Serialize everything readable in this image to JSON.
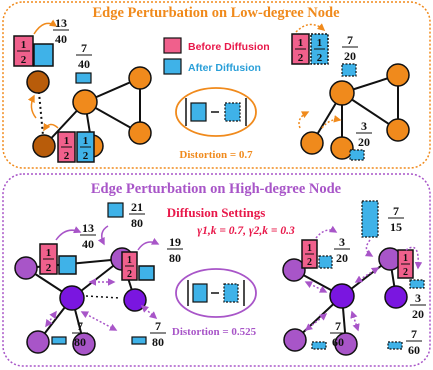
{
  "colors": {
    "orange": "#f08a1c",
    "orange_dark": "#b85c0a",
    "purple": "#a855c8",
    "purple_dark": "#7a16e0",
    "pink": "#f0608c",
    "blue": "#3fb2e8",
    "red_text": "#e8184a"
  },
  "top": {
    "title": "Edge Perturbation on Low-degree Node",
    "legend_before": "Before Diffusion",
    "legend_after": "After Diffusion",
    "distortion": "Distortion = 0.7",
    "left": {
      "bar_num": "1",
      "bar_den": "2",
      "f1_num": "13",
      "f1_den": "40",
      "f2_num": "7",
      "f2_den": "40"
    },
    "right": {
      "f1_num": "7",
      "f1_den": "20",
      "f2_num": "3",
      "f2_den": "20"
    }
  },
  "bottom": {
    "title": "Edge Perturbation on High-degree Node",
    "settings_title": "Diffusion Settings",
    "settings_params": "γ1,k = 0.7, γ2,k = 0.3",
    "distortion": "Distortion = 0.525",
    "left": {
      "bar_num": "1",
      "bar_den": "2",
      "f1_num": "13",
      "f1_den": "40",
      "f2_num": "21",
      "f2_den": "80",
      "f3_num": "19",
      "f3_den": "80",
      "f4_num": "7",
      "f4_den": "80",
      "f5_num": "7",
      "f5_den": "80"
    },
    "right": {
      "f1_num": "7",
      "f1_den": "15",
      "f2_num": "3",
      "f2_den": "20",
      "f3_num": "3",
      "f3_den": "20",
      "f4_num": "7",
      "f4_den": "60",
      "f5_num": "7",
      "f5_den": "60"
    }
  },
  "icons": [
    "absolute-value-bars-icon",
    "minus-sign-icon",
    "curved-arrow-icon",
    "double-headed-arrow-icon"
  ]
}
